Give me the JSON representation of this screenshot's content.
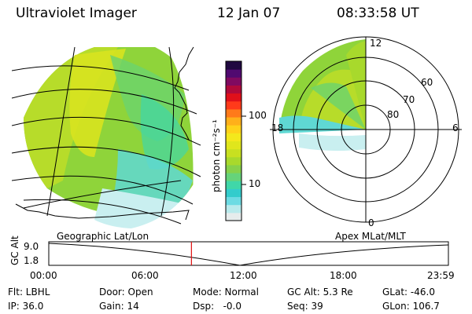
{
  "header": {
    "title": "Ultraviolet Imager",
    "date": "12 Jan 07",
    "time": "08:33:58 UT"
  },
  "colorbar": {
    "unit_label": "photon cm⁻²s⁻¹",
    "ticks": [
      "100",
      "10"
    ],
    "colors": [
      "#e6ecec",
      "#b8eaec",
      "#6ddbe3",
      "#33cccc",
      "#40d7a8",
      "#66d37a",
      "#86d14b",
      "#a8d92c",
      "#c8e020",
      "#e0e61c",
      "#f4e81c",
      "#ffd21a",
      "#ffb01a",
      "#ff7a1a",
      "#ff3a1a",
      "#e0101a",
      "#b00a3a",
      "#800a60",
      "#500a70",
      "#200840"
    ]
  },
  "polar_plot": {
    "lat_labels": [
      "80",
      "70",
      "60"
    ],
    "mlt_labels": [
      "12",
      "18",
      "6",
      "0"
    ]
  },
  "map_labels": {
    "left": "Geographic Lat/Lon",
    "right": "Apex MLat/MLT"
  },
  "timeline": {
    "ylabel": "GC Alt",
    "y_ticks": [
      "9.0",
      "1.8"
    ],
    "x_ticks": [
      "00:00",
      "06:00",
      "12:00",
      "18:00",
      "23:59"
    ],
    "current_time_fraction": 0.357
  },
  "info": {
    "flt": "Flt: LBHL",
    "door": "Door: Open",
    "mode": "Mode: Normal",
    "gc_alt": "GC Alt: 5.3 Re",
    "glat": "GLat: -46.0",
    "ip": "IP: 36.0",
    "gain": "Gain: 14",
    "dsp": "Dsp:   -0.0",
    "seq": "Seq: 39",
    "glon": "GLon: 106.7"
  }
}
